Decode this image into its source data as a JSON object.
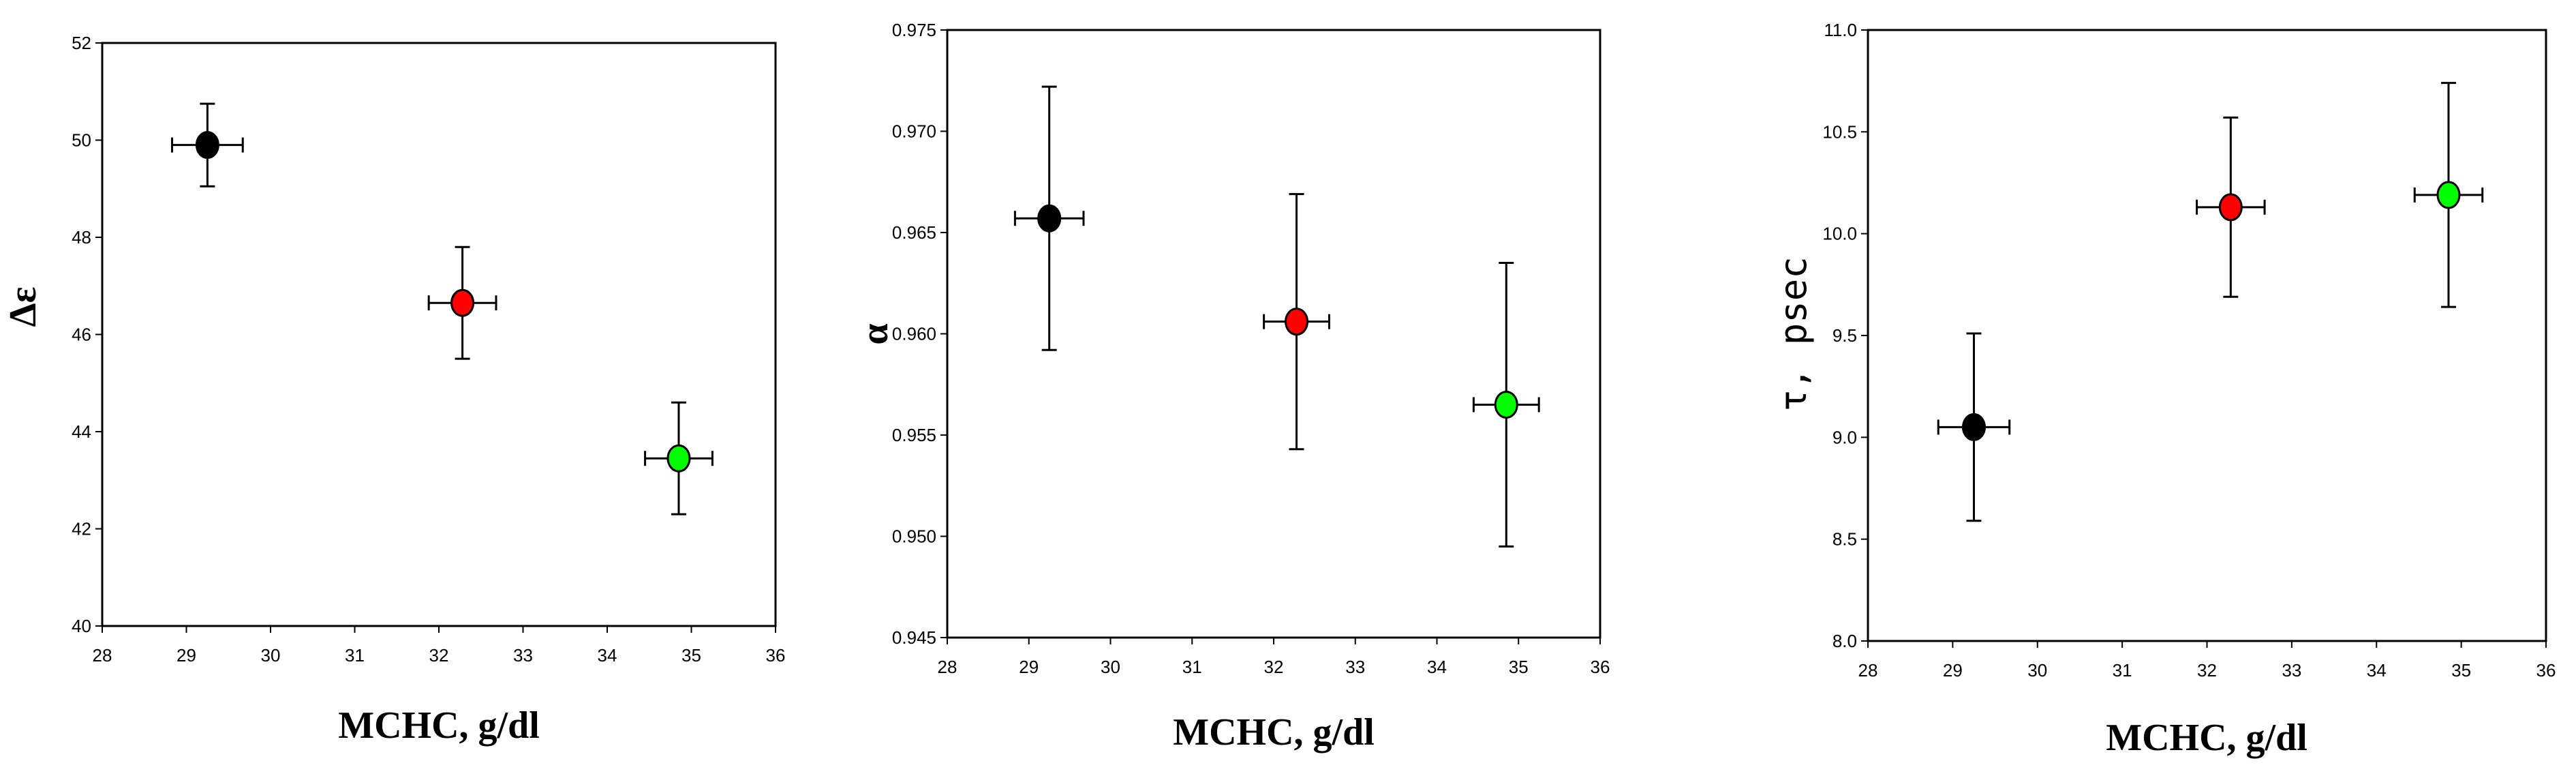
{
  "chart_data": [
    {
      "type": "scatter",
      "xlabel": "MCHC, g/dl",
      "ylabel": "Δε",
      "xlim": [
        28,
        36
      ],
      "ylim": [
        40,
        52
      ],
      "xticks": [
        "28",
        "29",
        "30",
        "31",
        "32",
        "33",
        "34",
        "35",
        "36"
      ],
      "yticks": [
        "40",
        "42",
        "44",
        "46",
        "48",
        "50",
        "52"
      ],
      "points": [
        {
          "x": 29.25,
          "y": 49.9,
          "xerr": 0.42,
          "yerr": 0.85,
          "color": "#000000"
        },
        {
          "x": 32.28,
          "y": 46.65,
          "xerr": 0.4,
          "yerr": 1.15,
          "color": "#ff0000"
        },
        {
          "x": 34.85,
          "y": 43.45,
          "xerr": 0.4,
          "yerr": 1.15,
          "color": "#00ff00"
        }
      ]
    },
    {
      "type": "scatter",
      "xlabel": "MCHC, g/dl",
      "ylabel": "α",
      "xlim": [
        28,
        36
      ],
      "ylim": [
        0.945,
        0.975
      ],
      "xticks": [
        "28",
        "29",
        "30",
        "31",
        "32",
        "33",
        "34",
        "35",
        "36"
      ],
      "yticks": [
        "0.945",
        "0.950",
        "0.955",
        "0.960",
        "0.965",
        "0.970",
        "0.975"
      ],
      "points": [
        {
          "x": 29.25,
          "y": 0.9657,
          "xerr": 0.42,
          "yerr": 0.0065,
          "color": "#000000"
        },
        {
          "x": 32.28,
          "y": 0.9606,
          "xerr": 0.4,
          "yerr": 0.0063,
          "color": "#ff0000"
        },
        {
          "x": 34.85,
          "y": 0.9565,
          "xerr": 0.4,
          "yerr": 0.007,
          "color": "#00ff00"
        }
      ]
    },
    {
      "type": "scatter",
      "xlabel": "MCHC, g/dl",
      "ylabel": "τ, psec",
      "xlim": [
        28,
        36
      ],
      "ylim": [
        8.0,
        11.0
      ],
      "xticks": [
        "28",
        "29",
        "30",
        "31",
        "32",
        "33",
        "34",
        "35",
        "36"
      ],
      "yticks": [
        "8.0",
        "8.5",
        "9.0",
        "9.5",
        "10.0",
        "10.5",
        "11.0"
      ],
      "points": [
        {
          "x": 29.25,
          "y": 9.05,
          "xerr": 0.42,
          "yerr": 0.46,
          "color": "#000000"
        },
        {
          "x": 32.28,
          "y": 10.13,
          "xerr": 0.4,
          "yerr": 0.44,
          "color": "#ff0000"
        },
        {
          "x": 34.85,
          "y": 10.19,
          "xerr": 0.4,
          "yerr": 0.55,
          "color": "#00ff00"
        }
      ]
    }
  ]
}
